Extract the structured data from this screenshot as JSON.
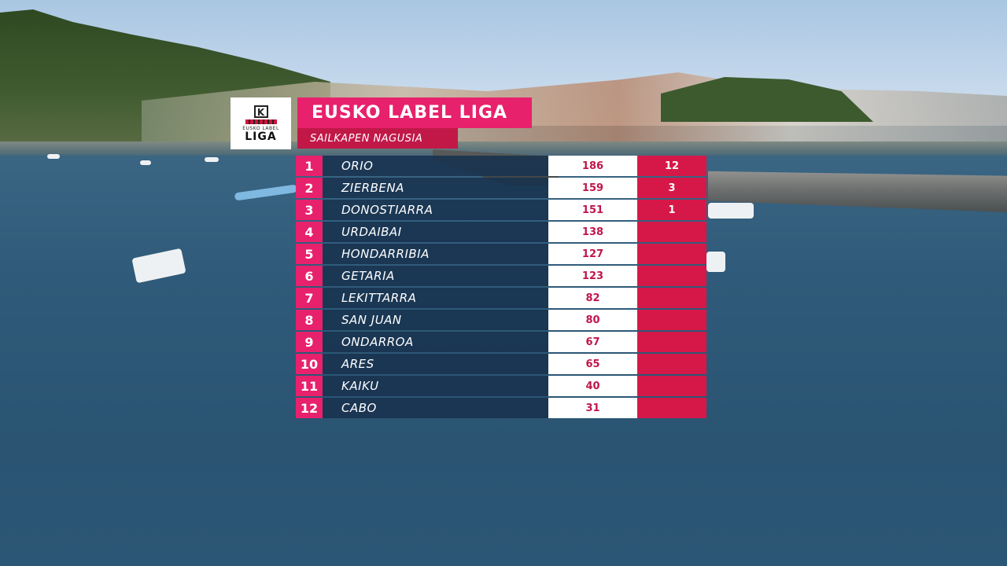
{
  "header": {
    "logo": {
      "mark": "K",
      "small_text": "EUSKO LABEL",
      "big_text": "LIGA"
    },
    "title": "EUSKO LABEL LIGA",
    "subtitle": "SAILKAPEN NAGUSIA"
  },
  "colors": {
    "accent": "#e8216c",
    "accent_dark": "#c11848",
    "wins_bg": "#d61848",
    "row_bg": "#18324e",
    "points_bg": "#ffffff"
  },
  "standings": [
    {
      "pos": "1",
      "team": "ORIO",
      "points": "186",
      "wins": "12"
    },
    {
      "pos": "2",
      "team": "ZIERBENA",
      "points": "159",
      "wins": "3"
    },
    {
      "pos": "3",
      "team": "DONOSTIARRA",
      "points": "151",
      "wins": "1"
    },
    {
      "pos": "4",
      "team": "URDAIBAI",
      "points": "138",
      "wins": ""
    },
    {
      "pos": "5",
      "team": "HONDARRIBIA",
      "points": "127",
      "wins": ""
    },
    {
      "pos": "6",
      "team": "GETARIA",
      "points": "123",
      "wins": ""
    },
    {
      "pos": "7",
      "team": "LEKITTARRA",
      "points": "82",
      "wins": ""
    },
    {
      "pos": "8",
      "team": "SAN JUAN",
      "points": "80",
      "wins": ""
    },
    {
      "pos": "9",
      "team": "ONDARROA",
      "points": "67",
      "wins": ""
    },
    {
      "pos": "10",
      "team": "ARES",
      "points": "65",
      "wins": ""
    },
    {
      "pos": "11",
      "team": "KAIKU",
      "points": "40",
      "wins": ""
    },
    {
      "pos": "12",
      "team": "CABO",
      "points": "31",
      "wins": ""
    }
  ]
}
